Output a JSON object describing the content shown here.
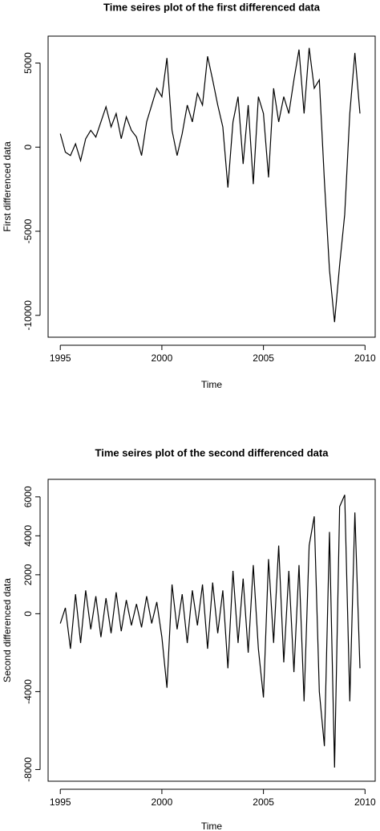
{
  "chart_data": [
    {
      "type": "line",
      "title": "Time seires plot of the first differenced data",
      "x_label": "Time",
      "y_label": "First differenced data",
      "x": [
        1995,
        1995.25,
        1995.5,
        1995.75,
        1996,
        1996.25,
        1996.5,
        1996.75,
        1997,
        1997.25,
        1997.5,
        1997.75,
        1998,
        1998.25,
        1998.5,
        1998.75,
        1999,
        1999.25,
        1999.5,
        1999.75,
        2000,
        2000.25,
        2000.5,
        2000.75,
        2001,
        2001.25,
        2001.5,
        2001.75,
        2002,
        2002.25,
        2002.5,
        2002.75,
        2003,
        2003.25,
        2003.5,
        2003.75,
        2004,
        2004.25,
        2004.5,
        2004.75,
        2005,
        2005.25,
        2005.5,
        2005.75,
        2006,
        2006.25,
        2006.5,
        2006.75,
        2007,
        2007.25,
        2007.5,
        2007.75,
        2008,
        2008.25,
        2008.5,
        2008.75,
        2009,
        2009.25,
        2009.5,
        2009.75
      ],
      "series": [
        {
          "color": "#000000",
          "values": [
            800,
            -300,
            -500,
            200,
            -800,
            500,
            1000,
            600,
            1500,
            2400,
            1200,
            2000,
            500,
            1800,
            1000,
            600,
            -500,
            1500,
            2500,
            3500,
            3000,
            5300,
            1000,
            -500,
            800,
            2500,
            1500,
            3200,
            2500,
            5400,
            4000,
            2500,
            1200,
            -2400,
            1500,
            3000,
            -1000,
            2500,
            -2200,
            3000,
            2000,
            -1800,
            3500,
            1500,
            3000,
            2000,
            4000,
            5800,
            2000,
            5900,
            3500,
            4000,
            -2000,
            -7300,
            -10400,
            -7000,
            -4000,
            2000,
            5600,
            2000
          ]
        }
      ],
      "xlim": [
        1994.4,
        2010.5
      ],
      "xticks": [
        1995,
        2000,
        2005,
        2010
      ],
      "ylim": [
        -11300,
        6600
      ],
      "yticks": [
        -10000,
        -5000,
        0,
        5000
      ]
    },
    {
      "type": "line",
      "title": "Time seires plot of the second differenced data",
      "x_label": "Time",
      "y_label": "Second differenced data",
      "x": [
        1995,
        1995.25,
        1995.5,
        1995.75,
        1996,
        1996.25,
        1996.5,
        1996.75,
        1997,
        1997.25,
        1997.5,
        1997.75,
        1998,
        1998.25,
        1998.5,
        1998.75,
        1999,
        1999.25,
        1999.5,
        1999.75,
        2000,
        2000.25,
        2000.5,
        2000.75,
        2001,
        2001.25,
        2001.5,
        2001.75,
        2002,
        2002.25,
        2002.5,
        2002.75,
        2003,
        2003.25,
        2003.5,
        2003.75,
        2004,
        2004.25,
        2004.5,
        2004.75,
        2005,
        2005.25,
        2005.5,
        2005.75,
        2006,
        2006.25,
        2006.5,
        2006.75,
        2007,
        2007.25,
        2007.5,
        2007.75,
        2008,
        2008.25,
        2008.5,
        2008.75,
        2009,
        2009.25,
        2009.5,
        2009.75
      ],
      "series": [
        {
          "color": "#000000",
          "values": [
            -500,
            300,
            -1800,
            1000,
            -1500,
            1200,
            -800,
            900,
            -1200,
            800,
            -1000,
            1100,
            -900,
            700,
            -600,
            500,
            -700,
            900,
            -500,
            600,
            -1200,
            -3800,
            1500,
            -800,
            1000,
            -1500,
            1200,
            -600,
            1500,
            -1800,
            1600,
            -1000,
            1200,
            -2800,
            2200,
            -1500,
            1800,
            -2000,
            2500,
            -1800,
            -4300,
            2800,
            -1500,
            3500,
            -2500,
            2200,
            -3000,
            2500,
            -4500,
            3500,
            5000,
            -4000,
            -6800,
            4200,
            -7900,
            5500,
            6100,
            -4500,
            5200,
            -2800
          ]
        }
      ],
      "xlim": [
        1994.4,
        2010.5
      ],
      "xticks": [
        1995,
        2000,
        2005,
        2010
      ],
      "ylim": [
        -8600,
        6900
      ],
      "yticks": [
        -8000,
        -4000,
        0,
        2000,
        4000,
        6000
      ]
    }
  ]
}
